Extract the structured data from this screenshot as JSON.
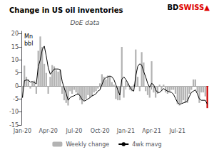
{
  "chart_data": {
    "type": "bar",
    "title": "Change in US oil inventories",
    "subtitle": "DoE data",
    "ylabel": "Mn\nbbl",
    "annotations": [
      {
        "text": "BD",
        "color": "#000000"
      },
      {
        "text": "SWISS",
        "color": "#dd0000"
      },
      {
        "text": "▲",
        "color": "#dd0000"
      }
    ],
    "categories": [
      "Jan-20",
      null,
      null,
      null,
      null,
      null,
      null,
      null,
      null,
      null,
      null,
      null,
      null,
      "Apr-20",
      null,
      null,
      null,
      null,
      null,
      null,
      null,
      null,
      null,
      null,
      null,
      null,
      "Jul-20",
      null,
      null,
      null,
      null,
      null,
      null,
      null,
      null,
      null,
      null,
      null,
      null,
      "Oct-20",
      null,
      null,
      null,
      null,
      null,
      null,
      null,
      null,
      null,
      null,
      null,
      null,
      "Jan-21",
      null,
      null,
      null,
      null,
      null,
      null,
      null,
      null,
      null,
      null,
      null,
      null,
      "Apr-21",
      null,
      null,
      null,
      null,
      null,
      null,
      null,
      null,
      null,
      null,
      null,
      null,
      "Jul-21",
      null,
      null,
      null,
      null,
      null,
      null,
      null,
      null,
      null,
      null,
      null,
      null,
      null,
      null,
      null
    ],
    "series": [
      {
        "name": "Weekly change",
        "type": "bar",
        "color": "#b3b3b3",
        "colors": [
          "#b3b3b3",
          "#b3b3b3",
          "#b3b3b3",
          "#b3b3b3",
          "#b3b3b3",
          "#b3b3b3",
          "#b3b3b3",
          "#b3b3b3",
          "#b3b3b3",
          "#b3b3b3",
          "#b3b3b3",
          "#b3b3b3",
          "#b3b3b3",
          "#b3b3b3",
          "#b3b3b3",
          "#b3b3b3",
          "#b3b3b3",
          "#b3b3b3",
          "#b3b3b3",
          "#b3b3b3",
          "#b3b3b3",
          "#b3b3b3",
          "#b3b3b3",
          "#b3b3b3",
          "#b3b3b3",
          "#b3b3b3",
          "#b3b3b3",
          "#b3b3b3",
          "#b3b3b3",
          "#b3b3b3",
          "#b3b3b3",
          "#b3b3b3",
          "#b3b3b3",
          "#b3b3b3",
          "#b3b3b3",
          "#b3b3b3",
          "#b3b3b3",
          "#b3b3b3",
          "#b3b3b3",
          "#b3b3b3",
          "#b3b3b3",
          "#b3b3b3",
          "#b3b3b3",
          "#b3b3b3",
          "#b3b3b3",
          "#b3b3b3",
          "#b3b3b3",
          "#b3b3b3",
          "#b3b3b3",
          "#b3b3b3",
          "#b3b3b3",
          "#b3b3b3",
          "#b3b3b3",
          "#b3b3b3",
          "#b3b3b3",
          "#b3b3b3",
          "#b3b3b3",
          "#b3b3b3",
          "#b3b3b3",
          "#b3b3b3",
          "#b3b3b3",
          "#b3b3b3",
          "#b3b3b3",
          "#b3b3b3",
          "#b3b3b3",
          "#b3b3b3",
          "#b3b3b3",
          "#b3b3b3",
          "#b3b3b3",
          "#b3b3b3",
          "#b3b3b3",
          "#b3b3b3",
          "#b3b3b3",
          "#b3b3b3",
          "#b3b3b3",
          "#b3b3b3",
          "#b3b3b3",
          "#b3b3b3",
          "#b3b3b3",
          "#b3b3b3",
          "#b3b3b3",
          "#b3b3b3",
          "#b3b3b3",
          "#b3b3b3",
          "#b3b3b3",
          "#b3b3b3",
          "#b3b3b3",
          "#b3b3b3",
          "#b3b3b3",
          "#b3b3b3",
          "#b3b3b3",
          "#b3b3b3",
          "#b3b3b3",
          "#cc0000"
        ],
        "values": [
          -4.5,
          7.8,
          3.5,
          2.5,
          -1.0,
          1.5,
          2.0,
          -3.0,
          13.5,
          19.0,
          15.0,
          8.5,
          5.0,
          -3.0,
          3.5,
          8.0,
          7.5,
          6.0,
          5.5,
          6.0,
          -3.0,
          -5.5,
          -6.5,
          -7.5,
          -2.0,
          -3.0,
          -1.5,
          -2.5,
          -3.5,
          -5.5,
          -7.0,
          -5.5,
          -5.0,
          -3.5,
          -4.5,
          -4.0,
          -2.5,
          -2.0,
          -1.0,
          1.0,
          4.5,
          3.5,
          2.5,
          4.0,
          3.5,
          1.5,
          0.5,
          -5.0,
          -5.5,
          -5.5,
          15.0,
          -4.5,
          2.0,
          1.0,
          -1.5,
          -2.0,
          0.5,
          14.0,
          3.5,
          -2.0,
          13.0,
          9.0,
          -2.0,
          -3.5,
          -4.5,
          9.5,
          -2.5,
          -4.5,
          -3.0,
          0.5,
          -2.0,
          0.5,
          -2.5,
          -3.0,
          -2.5,
          -1.5,
          -1.5,
          -3.0,
          -7.0,
          -7.5,
          -6.5,
          -5.5,
          -6.5,
          -6.5,
          -3.0,
          -1.5,
          2.5,
          2.5,
          -2.5,
          -6.5,
          -2.5,
          -2.5,
          -4.0,
          -8.5
        ]
      },
      {
        "name": "4wk mavg",
        "type": "line",
        "color": "#000000",
        "values": [
          -4.5,
          2.0,
          2.3,
          2.2,
          1.5,
          1.7,
          1.3,
          0.8,
          7.5,
          10.0,
          14.0,
          15.3,
          11.5,
          7.0,
          4.5,
          5.5,
          6.5,
          6.5,
          6.5,
          6.3,
          1.8,
          -0.8,
          -2.8,
          -5.5,
          -4.5,
          -4.0,
          -3.8,
          -3.3,
          -3.0,
          -3.8,
          -5.2,
          -5.8,
          -5.5,
          -5.0,
          -4.5,
          -3.8,
          -3.5,
          -3.0,
          -2.0,
          -1.5,
          0.5,
          2.5,
          3.2,
          3.5,
          3.8,
          3.5,
          2.5,
          0.5,
          -1.5,
          -3.5,
          2.5,
          3.5,
          2.5,
          1.2,
          -0.3,
          -1.5,
          -2.0,
          3.8,
          7.5,
          8.5,
          8.0,
          5.5,
          3.5,
          1.0,
          -0.5,
          1.0,
          0.5,
          -1.5,
          -2.5,
          -2.5,
          -1.8,
          -1.0,
          -1.5,
          -2.0,
          -2.3,
          -2.5,
          -3.2,
          -4.8,
          -6.3,
          -7.0,
          -6.8,
          -6.5,
          -6.2,
          -5.8,
          -4.0,
          -2.5,
          -2.0,
          -1.5,
          -3.0,
          -5.0,
          -5.5,
          -5.5,
          -5.5,
          -7.0
        ]
      }
    ],
    "ylim": [
      -15,
      21
    ],
    "yticks": [
      -15,
      -10,
      -5,
      0,
      5,
      10,
      15,
      20
    ],
    "grid": false,
    "legend": "bottom"
  }
}
